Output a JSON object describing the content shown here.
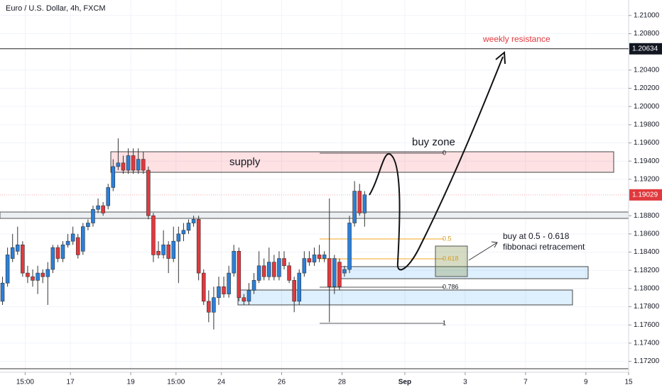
{
  "chart_data": {
    "type": "candlestick",
    "title": "Euro / U.S. Dollar, 4h, FXCM",
    "up_color": "#2b7fd8",
    "down_color": "#e0393e",
    "open": [
      1.1786,
      1.1806,
      1.1833,
      1.1841,
      1.1848,
      1.1817,
      1.1813,
      1.1809,
      1.1817,
      1.1813,
      1.1821,
      1.1845,
      1.1833,
      1.1848,
      1.1852,
      1.1856,
      1.1841,
      1.1868,
      1.1872,
      1.1887,
      1.1891,
      1.1891,
      1.1911,
      1.1934,
      1.1938,
      1.193,
      1.1946,
      1.193,
      1.1942,
      1.193,
      1.188,
      1.1841,
      1.1837,
      1.1848,
      1.1833,
      1.1852,
      1.186,
      1.1864,
      1.1872,
      1.1876,
      1.1817,
      1.1786,
      1.1774,
      1.179,
      1.1802,
      1.1794,
      1.1817,
      1.1841,
      1.179,
      1.1786,
      1.1798,
      1.1809,
      1.1825,
      1.1813,
      1.1829,
      1.1813,
      1.1833,
      1.1825,
      1.1809,
      1.1786,
      1.1817,
      1.1833,
      1.1829,
      1.1837,
      1.1833,
      1.1833,
      1.1802,
      1.1829,
      1.1817,
      1.1821,
      1.1872,
      1.1907,
      1.1883
    ],
    "high": [
      1.1813,
      1.1845,
      1.186,
      1.1868,
      1.1852,
      1.1825,
      1.1821,
      1.1825,
      1.1821,
      1.1829,
      1.1848,
      1.1848,
      1.1852,
      1.186,
      1.1868,
      1.186,
      1.1872,
      1.1876,
      1.1891,
      1.1899,
      1.1895,
      1.1915,
      1.1942,
      1.1965,
      1.1946,
      1.1954,
      1.1954,
      1.1954,
      1.195,
      1.1934,
      1.1883,
      1.1852,
      1.1864,
      1.1852,
      1.1868,
      1.1868,
      1.1872,
      1.1876,
      1.188,
      1.188,
      1.1821,
      1.1798,
      1.1802,
      1.1813,
      1.1813,
      1.1825,
      1.1848,
      1.1845,
      1.1794,
      1.1806,
      1.1817,
      1.1841,
      1.1833,
      1.1845,
      1.1837,
      1.1841,
      1.1841,
      1.1829,
      1.1813,
      1.1821,
      1.1841,
      1.1841,
      1.1845,
      1.1848,
      1.1841,
      1.1899,
      1.1837,
      1.1833,
      1.1825,
      1.188,
      1.1918,
      1.1915,
      1.1907
    ],
    "low": [
      1.1782,
      1.1802,
      1.1829,
      1.1837,
      1.1813,
      1.1806,
      1.1802,
      1.1794,
      1.1806,
      1.1782,
      1.1817,
      1.1829,
      1.1829,
      1.1845,
      1.1848,
      1.1833,
      1.1837,
      1.1864,
      1.1868,
      1.1883,
      1.188,
      1.1887,
      1.1907,
      1.193,
      1.1926,
      1.1926,
      1.1926,
      1.1926,
      1.1926,
      1.1876,
      1.1829,
      1.1833,
      1.1833,
      1.1817,
      1.1829,
      1.1806,
      1.1852,
      1.186,
      1.1868,
      1.1809,
      1.1782,
      1.1763,
      1.1755,
      1.1782,
      1.179,
      1.179,
      1.1813,
      1.1786,
      1.1782,
      1.1782,
      1.1794,
      1.1806,
      1.1809,
      1.1809,
      1.1809,
      1.1809,
      1.1821,
      1.1806,
      1.1774,
      1.1782,
      1.1813,
      1.1825,
      1.1825,
      1.1829,
      1.1829,
      1.1763,
      1.1794,
      1.1798,
      1.1813,
      1.1817,
      1.1868,
      1.188,
      1.1868
    ],
    "close": [
      1.1806,
      1.1837,
      1.1845,
      1.1848,
      1.1817,
      1.1813,
      1.1809,
      1.1817,
      1.1813,
      1.1821,
      1.1845,
      1.1833,
      1.1848,
      1.1852,
      1.186,
      1.1837,
      1.1868,
      1.1872,
      1.1887,
      1.1891,
      1.1883,
      1.1911,
      1.1934,
      1.1938,
      1.193,
      1.1946,
      1.193,
      1.1942,
      1.193,
      1.188,
      1.1837,
      1.1837,
      1.1848,
      1.1833,
      1.1852,
      1.186,
      1.1864,
      1.1872,
      1.1876,
      1.1817,
      1.1786,
      1.1774,
      1.179,
      1.1802,
      1.1794,
      1.1817,
      1.1841,
      1.179,
      1.1786,
      1.1798,
      1.1809,
      1.1825,
      1.1813,
      1.1829,
      1.1813,
      1.1833,
      1.1825,
      1.1809,
      1.1786,
      1.1817,
      1.1833,
      1.1829,
      1.1837,
      1.1833,
      1.1837,
      1.1802,
      1.1833,
      1.1802,
      1.1821,
      1.1872,
      1.1907,
      1.1883,
      1.1903
    ],
    "xlim": [
      -0.5,
      124.5
    ],
    "xticks": [
      {
        "value": 4.5,
        "label": "15:00"
      },
      {
        "value": 13.5,
        "label": "17"
      },
      {
        "value": 25.5,
        "label": "19"
      },
      {
        "value": 34.5,
        "label": "15:00"
      },
      {
        "value": 43.5,
        "label": "24"
      },
      {
        "value": 55.5,
        "label": "26"
      },
      {
        "value": 67.5,
        "label": "28"
      },
      {
        "value": 80,
        "label": "Sep"
      },
      {
        "value": 92,
        "label": "3"
      },
      {
        "value": 104,
        "label": "7"
      },
      {
        "value": 116,
        "label": "9"
      },
      {
        "value": 124.5,
        "label": "15"
      }
    ],
    "ylim": [
      1.1708,
      1.2117
    ],
    "yticks": [
      {
        "value": 1.172,
        "label": "1.17200"
      },
      {
        "value": 1.174,
        "label": "1.17400"
      },
      {
        "value": 1.176,
        "label": "1.17600"
      },
      {
        "value": 1.178,
        "label": "1.17800"
      },
      {
        "value": 1.18,
        "label": "1.18000"
      },
      {
        "value": 1.182,
        "label": "1.18200"
      },
      {
        "value": 1.184,
        "label": "1.18400"
      },
      {
        "value": 1.186,
        "label": "1.18600"
      },
      {
        "value": 1.188,
        "label": "1.18800"
      },
      {
        "value": 1.192,
        "label": "1.19200"
      },
      {
        "value": 1.194,
        "label": "1.19400"
      },
      {
        "value": 1.196,
        "label": "1.19600"
      },
      {
        "value": 1.198,
        "label": "1.19800"
      },
      {
        "value": 1.2,
        "label": "1.20000"
      },
      {
        "value": 1.202,
        "label": "1.20200"
      },
      {
        "value": 1.204,
        "label": "1.20400"
      },
      {
        "value": 1.208,
        "label": "1.20800"
      },
      {
        "value": 1.21,
        "label": "1.21000"
      }
    ],
    "last_price": 1.19029,
    "resistance_price": 1.20634,
    "annotations": {
      "supply": "supply",
      "buy_zone": "buy zone",
      "weekly_resistance": "weekly resistance",
      "note_line1": "buy at 0.5 - 0.618",
      "note_line2": "fibbonaci retracement",
      "fib_labels": [
        "0",
        "0.5",
        "0.618",
        "0.786",
        "1"
      ]
    }
  }
}
